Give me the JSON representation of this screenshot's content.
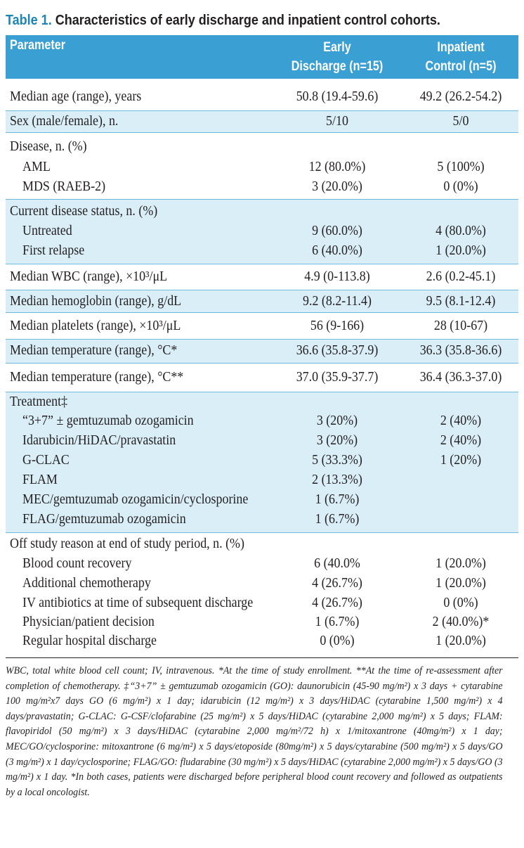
{
  "title": {
    "label": "Table 1.",
    "text": "Characteristics of early discharge and inpatient control cohorts."
  },
  "header": {
    "parameter": "Parameter",
    "early_line1": "Early",
    "early_line2": "Discharge (n=15)",
    "inpatient_line1": "Inpatient",
    "inpatient_line2": "Control (n=5)"
  },
  "rows": {
    "age": {
      "label": "Median age (range), years",
      "early": "50.8 (19.4-59.6)",
      "inpatient": "49.2 (26.2-54.2)"
    },
    "sex": {
      "label": "Sex (male/female), n.",
      "early": "5/10",
      "inpatient": "5/0"
    },
    "disease": {
      "label": "Disease, n. (%)"
    },
    "aml": {
      "label": "AML",
      "early": "12 (80.0%)",
      "inpatient": "5 (100%)"
    },
    "mds": {
      "label": "MDS (RAEB-2)",
      "early": "3 (20.0%)",
      "inpatient": "0 (0%)"
    },
    "status": {
      "label": "Current disease status, n. (%)"
    },
    "untreated": {
      "label": "Untreated",
      "early": "9 (60.0%)",
      "inpatient": "4 (80.0%)"
    },
    "relapse": {
      "label": "First relapse",
      "early": "6 (40.0%)",
      "inpatient": "1 (20.0%)"
    },
    "wbc": {
      "label": "Median WBC (range), ×10³/μL",
      "early": "4.9 (0-113.8)",
      "inpatient": "2.6 (0.2-45.1)"
    },
    "hgb": {
      "label": "Median hemoglobin (range), g/dL",
      "early": "9.2 (8.2-11.4)",
      "inpatient": "9.5 (8.1-12.4)"
    },
    "plt": {
      "label": "Median platelets (range), ×10³/μL",
      "early": "56 (9-166)",
      "inpatient": "28 (10-67)"
    },
    "temp1": {
      "label": "Median temperature (range), °C*",
      "early": "36.6 (35.8-37.9)",
      "inpatient": "36.3 (35.8-36.6)"
    },
    "temp2": {
      "label": "Median temperature (range), °C**",
      "early": "37.0 (35.9-37.7)",
      "inpatient": "36.4 (36.3-37.0)"
    },
    "treatment": {
      "label": "Treatment‡"
    },
    "t1": {
      "label": "“3+7” ± gemtuzumab ozogamicin",
      "early": "3 (20%)",
      "inpatient": "2 (40%)"
    },
    "t2": {
      "label": "Idarubicin/HiDAC/pravastatin",
      "early": "3 (20%)",
      "inpatient": "2 (40%)"
    },
    "t3": {
      "label": "G-CLAC",
      "early": "5 (33.3%)",
      "inpatient": "1 (20%)"
    },
    "t4": {
      "label": "FLAM",
      "early": "2 (13.3%)",
      "inpatient": ""
    },
    "t5": {
      "label": "MEC/gemtuzumab ozogamicin/cyclosporine",
      "early": "1 (6.7%)",
      "inpatient": ""
    },
    "t6": {
      "label": "FLAG/gemtuzumab ozogamicin",
      "early": "1 (6.7%)",
      "inpatient": ""
    },
    "offstudy": {
      "label": "Off study reason at end of study period, n. (%)"
    },
    "o1": {
      "label": "Blood count recovery",
      "early": "6 (40.0%",
      "inpatient": "1 (20.0%)"
    },
    "o2": {
      "label": "Additional chemotherapy",
      "early": "4 (26.7%)",
      "inpatient": "1 (20.0%)"
    },
    "o3": {
      "label": "IV antibiotics at time of subsequent discharge",
      "early": "4 (26.7%)",
      "inpatient": "0 (0%)"
    },
    "o4": {
      "label": "Physician/patient decision",
      "early": "1 (6.7%)",
      "inpatient": "2 (40.0%)*"
    },
    "o5": {
      "label": "Regular hospital discharge",
      "early": "0 (0%)",
      "inpatient": "1 (20.0%)"
    }
  },
  "footnote": "WBC, total white blood cell count; IV, intravenous. *At the time of study enrollment. **At the time of re-assessment after completion of chemotherapy. ‡“3+7” ± gemtuzumab ozogamicin (GO): daunorubicin (45-90 mg/m²) x 3 days + cytarabine 100 mg/m²x7 days GO (6 mg/m²) x 1 day; idarubicin (12 mg/m²) x 3 days/HiDAC (cytarabine 1,500 mg/m²) x 4 days/pravastatin; G-CLAC: G-CSF/clofarabine (25 mg/m²) x 5 days/HiDAC (cytarabine 2,000 mg/m²) x 5 days; FLAM: flavopiridol (50 mg/m²) x 3 days/HiDAC (cytarabine 2,000 mg/m²/72 h) x 1/mitoxantrone (40mg/m²) x 1 day; MEC/GO/cyclosporine: mitoxantrone (6 mg/m²) x 5 days/etoposide (80mg/m²) x 5 days/cytarabine (500 mg/m²) x 5 days/GO (3 mg/m²) x 1 day/cyclosporine; FLAG/GO: fludarabine (30 mg/m²) x 5 days/HiDAC (cytarabine 2,000 mg/m²) x 5 days/GO (3 mg/m²) x 1 day. *In both cases, patients were discharged before peripheral blood count recovery and followed as outpatients by a local oncologist."
}
